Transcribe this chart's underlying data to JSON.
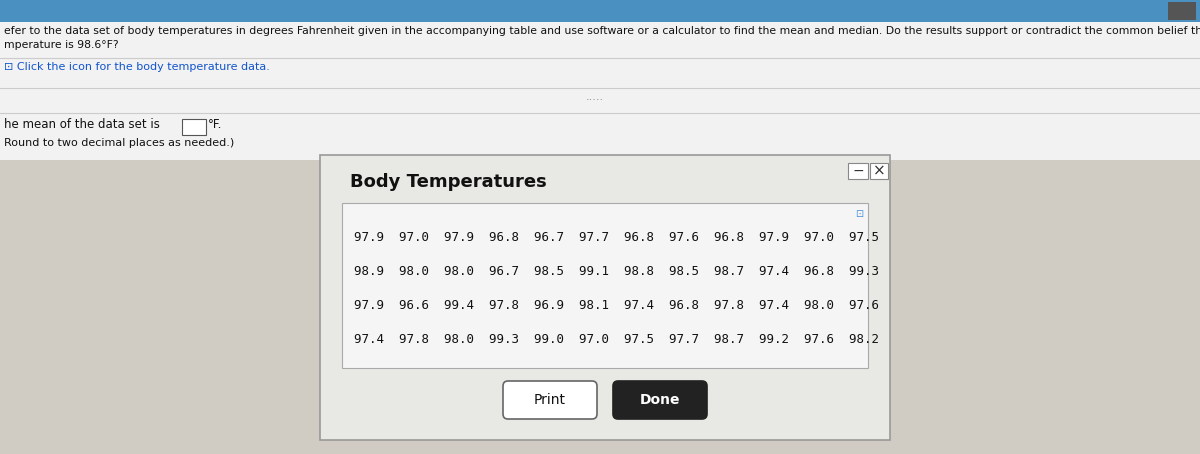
{
  "title_line1": "efer to the data set of body temperatures in degrees Fahrenheit given in the accompanying table and use software or a calculator to find the mean and median. Do the results support or contradict the common belief that the mean body",
  "title_line2": "mperature is 98.6°F?",
  "click_text": "⊡ Click the icon for the body temperature data.",
  "mean_text": "he mean of the data set is",
  "mean_box_label": "°F.",
  "round_text": "Round to two decimal places as needed.)",
  "dots": ".....",
  "dialog_title": "Body Temperatures",
  "data_rows": [
    [
      97.9,
      97.0,
      97.9,
      96.8,
      96.7,
      97.7,
      96.8,
      97.6,
      96.8,
      97.9,
      97.0,
      97.5
    ],
    [
      98.9,
      98.0,
      98.0,
      96.7,
      98.5,
      99.1,
      98.8,
      98.5,
      98.7,
      97.4,
      96.8,
      99.3
    ],
    [
      97.9,
      96.6,
      99.4,
      97.8,
      96.9,
      98.1,
      97.4,
      96.8,
      97.8,
      97.4,
      98.0,
      97.6
    ],
    [
      97.4,
      97.8,
      98.0,
      99.3,
      99.0,
      97.0,
      97.5,
      97.7,
      98.7,
      99.2,
      97.6,
      98.2
    ]
  ],
  "print_label": "Print",
  "done_label": "Done",
  "page_bg": "#e8e8e8",
  "top_bg": "#ffffff",
  "top_bar_color": "#4a90c0",
  "top_bar_height": 0.048,
  "click_color": "#1155cc",
  "dialog_bg": "#e8e8e8",
  "dialog_border": "#999999",
  "table_bg": "#f5f5f5",
  "table_border": "#aaaaaa",
  "text_color": "#111111",
  "dots_color": "#888888",
  "btn_print_bg": "#ffffff",
  "btn_done_bg": "#222222",
  "btn_done_text": "#ffffff",
  "btn_border": "#666666"
}
